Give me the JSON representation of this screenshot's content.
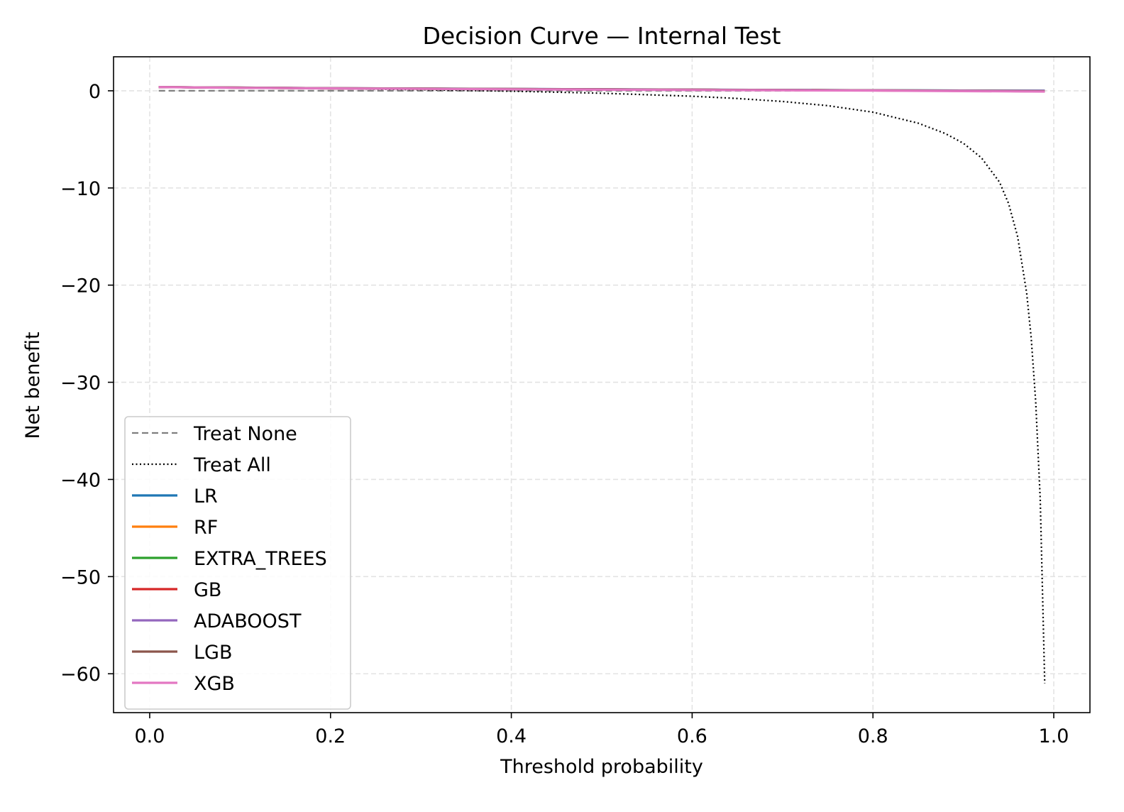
{
  "chart_data": {
    "type": "line",
    "title": "Decision Curve — Internal Test",
    "xlabel": "Threshold probability",
    "ylabel": "Net benefit",
    "xlim": [
      -0.04,
      1.04
    ],
    "ylim": [
      -64.0,
      3.5
    ],
    "xticks": [
      0.0,
      0.2,
      0.4,
      0.6,
      0.8,
      1.0
    ],
    "xtick_labels": [
      "0.0",
      "0.2",
      "0.4",
      "0.6",
      "0.8",
      "1.0"
    ],
    "yticks": [
      0,
      -10,
      -20,
      -30,
      -40,
      -50,
      -60
    ],
    "ytick_labels": [
      "0",
      "−10",
      "−20",
      "−30",
      "−40",
      "−50",
      "−60"
    ],
    "grid": true,
    "legend_position": "lower-left",
    "treat_none": {
      "name": "Treat None",
      "color": "#7f7f7f",
      "style": "dashed",
      "x": [
        0.01,
        0.99
      ],
      "y": [
        0,
        0
      ]
    },
    "treat_all": {
      "name": "Treat All",
      "color": "#000000",
      "style": "dotted",
      "x": [
        0.01,
        0.1,
        0.2,
        0.3,
        0.4,
        0.5,
        0.6,
        0.65,
        0.7,
        0.75,
        0.8,
        0.85,
        0.88,
        0.9,
        0.92,
        0.94,
        0.95,
        0.96,
        0.97,
        0.975,
        0.98,
        0.985,
        0.99
      ],
      "y": [
        0.38,
        0.31,
        0.22,
        0.11,
        -0.04,
        -0.25,
        -0.56,
        -0.79,
        -1.1,
        -1.53,
        -2.2,
        -3.33,
        -4.4,
        -5.4,
        -6.9,
        -9.4,
        -11.6,
        -15.0,
        -20.8,
        -25.4,
        -32.0,
        -42.0,
        -61.0
      ]
    },
    "series": [
      {
        "name": "LR",
        "color": "#1f77b4",
        "x": [
          0.01,
          0.2,
          0.4,
          0.6,
          0.8,
          0.99
        ],
        "y": [
          0.38,
          0.26,
          0.19,
          0.12,
          0.05,
          0.0
        ]
      },
      {
        "name": "RF",
        "color": "#ff7f0e",
        "x": [
          0.01,
          0.2,
          0.4,
          0.6,
          0.8,
          0.99
        ],
        "y": [
          0.38,
          0.25,
          0.18,
          0.11,
          0.04,
          -0.02
        ]
      },
      {
        "name": "EXTRA_TREES",
        "color": "#2ca02c",
        "x": [
          0.01,
          0.2,
          0.4,
          0.6,
          0.8,
          0.99
        ],
        "y": [
          0.38,
          0.25,
          0.18,
          0.11,
          0.05,
          0.0
        ]
      },
      {
        "name": "GB",
        "color": "#d62728",
        "x": [
          0.01,
          0.2,
          0.4,
          0.6,
          0.8,
          0.99
        ],
        "y": [
          0.38,
          0.26,
          0.18,
          0.11,
          0.04,
          -0.05
        ]
      },
      {
        "name": "ADABOOST",
        "color": "#9467bd",
        "x": [
          0.01,
          0.2,
          0.4,
          0.6,
          0.8,
          0.99
        ],
        "y": [
          0.38,
          0.26,
          0.19,
          0.12,
          0.05,
          0.0
        ]
      },
      {
        "name": "LGB",
        "color": "#8c564b",
        "x": [
          0.01,
          0.2,
          0.4,
          0.6,
          0.8,
          0.99
        ],
        "y": [
          0.38,
          0.25,
          0.18,
          0.11,
          0.04,
          -0.05
        ]
      },
      {
        "name": "XGB",
        "color": "#e377c2",
        "x": [
          0.01,
          0.1,
          0.2,
          0.4,
          0.6,
          0.8,
          0.99
        ],
        "y": [
          0.38,
          0.3,
          0.24,
          0.15,
          0.08,
          0.02,
          -0.08
        ]
      }
    ]
  }
}
